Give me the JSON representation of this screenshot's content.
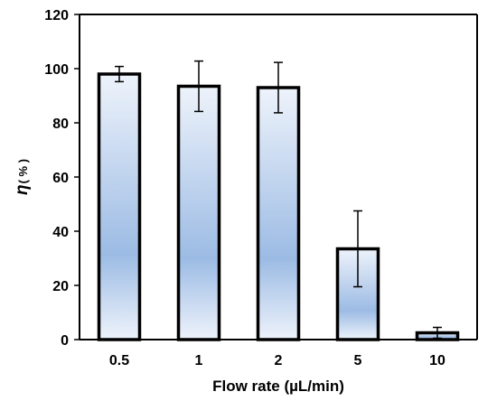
{
  "chart_data": {
    "type": "bar",
    "categories": [
      "0.5",
      "1",
      "2",
      "5",
      "10"
    ],
    "values": [
      98,
      93.5,
      93,
      33.5,
      2.5
    ],
    "errors": [
      2.8,
      9.3,
      9.3,
      14,
      2
    ],
    "xlabel": "Flow rate (µL/min)",
    "ylabel_symbol": "η",
    "ylabel_unit": "( % )",
    "ylim": [
      0,
      120
    ],
    "yticks": [
      0,
      20,
      40,
      60,
      80,
      100,
      120
    ],
    "grid": false,
    "bar_gradient": [
      "#eef3fb",
      "#9cbbe4",
      "#eef3fb"
    ],
    "bar_edge_color": "#000000"
  }
}
